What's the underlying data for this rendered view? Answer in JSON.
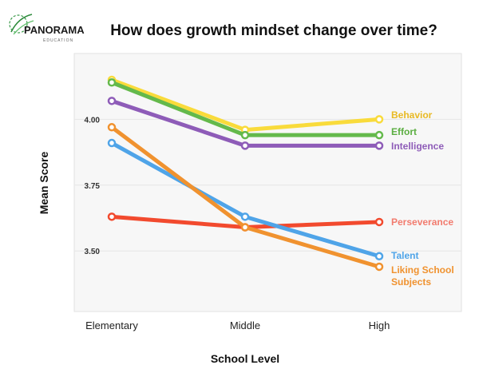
{
  "brand": {
    "name": "PANORAMA",
    "sub": "EDUCATION"
  },
  "chart_data": {
    "type": "line",
    "title": "How does growth mindset change over time?",
    "xlabel": "School Level",
    "ylabel": "Mean Score",
    "categories": [
      "Elementary",
      "Middle",
      "High"
    ],
    "yticks": [
      "3.50",
      "3.75",
      "4.00"
    ],
    "ylim": [
      3.27,
      4.25
    ],
    "grid": true,
    "series": [
      {
        "name": "Behavior",
        "values": [
          4.15,
          3.96,
          4.0
        ],
        "color": "#F9DB3B"
      },
      {
        "name": "Effort",
        "values": [
          4.14,
          3.94,
          3.94
        ],
        "color": "#64B94B"
      },
      {
        "name": "Intelligence",
        "values": [
          4.07,
          3.9,
          3.9
        ],
        "color": "#8E5CB8"
      },
      {
        "name": "Perseverance",
        "values": [
          3.63,
          3.59,
          3.61
        ],
        "color": "#F24A2E"
      },
      {
        "name": "Talent",
        "values": [
          3.91,
          3.63,
          3.48
        ],
        "color": "#4FA4E8"
      },
      {
        "name": "Liking School Subjects",
        "values": [
          3.97,
          3.59,
          3.44
        ],
        "color": "#F0922F"
      }
    ],
    "labels": [
      {
        "lines": [
          "Behavior"
        ],
        "color": "#E8B923"
      },
      {
        "lines": [
          "Effort"
        ],
        "color": "#5BAE41"
      },
      {
        "lines": [
          "Intelligence"
        ],
        "color": "#8E5CB8"
      },
      {
        "lines": [
          "Perseverance"
        ],
        "color": "#F27B6E"
      },
      {
        "lines": [
          "Talent"
        ],
        "color": "#4FA4E8"
      },
      {
        "lines": [
          "Liking School",
          "Subjects"
        ],
        "color": "#F0922F"
      }
    ]
  }
}
